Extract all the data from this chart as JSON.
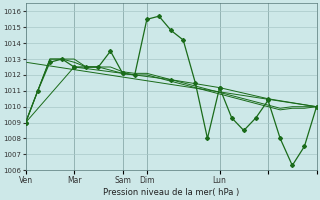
{
  "background_color": "#cde8e8",
  "grid_color": "#a8c8c8",
  "line_color": "#1a6b1a",
  "ylabel": "Pression niveau de la mer( hPa )",
  "ylim": [
    1006,
    1016.5
  ],
  "yticks": [
    1006,
    1007,
    1008,
    1009,
    1010,
    1011,
    1012,
    1013,
    1014,
    1015,
    1016
  ],
  "xlim": [
    0,
    288
  ],
  "xtick_positions": [
    0,
    48,
    96,
    120,
    192,
    240,
    288
  ],
  "xtick_labels": [
    "Ven",
    "Mar",
    "Sam",
    "Dim",
    "Lun",
    "",
    ""
  ],
  "vlines": [
    48,
    96,
    120,
    192,
    240,
    288
  ],
  "line1_x": [
    0,
    12,
    24,
    36,
    48,
    60,
    72,
    84,
    96,
    108,
    120,
    132,
    144,
    156,
    168,
    180,
    192,
    204,
    216,
    228,
    240,
    252,
    264,
    276,
    288
  ],
  "line1_y": [
    1009,
    1011,
    1013,
    1013,
    1013,
    1012.5,
    1012.5,
    1012.5,
    1012.2,
    1012.1,
    1012.1,
    1011.9,
    1011.7,
    1011.5,
    1011.3,
    1011.1,
    1010.9,
    1010.7,
    1010.5,
    1010.3,
    1010.1,
    1009.9,
    1010.0,
    1010.0,
    1010.0
  ],
  "line2_x": [
    0,
    12,
    24,
    36,
    48,
    60,
    72,
    84,
    96,
    108,
    120,
    132,
    144,
    156,
    168,
    180,
    192,
    204,
    216,
    228,
    240,
    252,
    264,
    276,
    288
  ],
  "line2_y": [
    1009,
    1011,
    1013,
    1013,
    1012.8,
    1012.5,
    1012.5,
    1012.3,
    1012.1,
    1012.0,
    1012.0,
    1011.8,
    1011.6,
    1011.4,
    1011.2,
    1011.0,
    1010.8,
    1010.6,
    1010.4,
    1010.2,
    1010.0,
    1009.8,
    1009.9,
    1009.9,
    1010.0
  ],
  "line3_x": [
    0,
    48,
    96,
    144,
    192,
    240,
    288
  ],
  "line3_y": [
    1009,
    1012.5,
    1012.1,
    1011.7,
    1011.2,
    1010.5,
    1010.0
  ],
  "line4_x": [
    0,
    12,
    24,
    36,
    48,
    60,
    72,
    84,
    96,
    108,
    120,
    132,
    144,
    156,
    168,
    180,
    192,
    204,
    216,
    228,
    240,
    252,
    264,
    276,
    288
  ],
  "line4_y": [
    1009,
    1011.0,
    1012.8,
    1013.0,
    1012.5,
    1012.5,
    1012.5,
    1013.5,
    1012.1,
    1012.0,
    1015.5,
    1015.7,
    1014.8,
    1014.2,
    1011.5,
    1008.0,
    1011.2,
    1009.3,
    1008.5,
    1009.3,
    1010.4,
    1008.0,
    1006.3,
    1007.5,
    1010.0
  ],
  "trend_x": [
    0,
    288
  ],
  "trend_y": [
    1012.8,
    1010.0
  ]
}
